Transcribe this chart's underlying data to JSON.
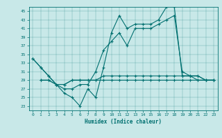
{
  "xlabel": "Humidex (Indice chaleur)",
  "bg_color": "#c8e8e8",
  "line_color": "#007070",
  "xlim": [
    -0.5,
    23.5
  ],
  "ylim": [
    22,
    46
  ],
  "yticks": [
    23,
    25,
    27,
    29,
    31,
    33,
    35,
    37,
    39,
    41,
    43,
    45
  ],
  "xticks": [
    0,
    1,
    2,
    3,
    4,
    5,
    6,
    7,
    8,
    9,
    10,
    11,
    12,
    13,
    14,
    15,
    16,
    17,
    18,
    19,
    20,
    21,
    22,
    23
  ],
  "series": [
    [
      34,
      32,
      30,
      28,
      26,
      25,
      23,
      27,
      25,
      32,
      40,
      44,
      41,
      42,
      42,
      42,
      43,
      46,
      46,
      30,
      30,
      30,
      29,
      29
    ],
    [
      34,
      32,
      30,
      28,
      27,
      27,
      28,
      28,
      31,
      36,
      38,
      40,
      37,
      41,
      41,
      41,
      42,
      43,
      44,
      31,
      30,
      29,
      29,
      29
    ],
    [
      null,
      29,
      29,
      28,
      28,
      29,
      29,
      29,
      29,
      30,
      30,
      30,
      30,
      30,
      30,
      30,
      30,
      30,
      30,
      30,
      30,
      30,
      29,
      29
    ],
    [
      null,
      29,
      29,
      28,
      28,
      29,
      29,
      29,
      29,
      29,
      29,
      29,
      29,
      29,
      29,
      29,
      29,
      29,
      29,
      29,
      29,
      29,
      29,
      29
    ]
  ]
}
